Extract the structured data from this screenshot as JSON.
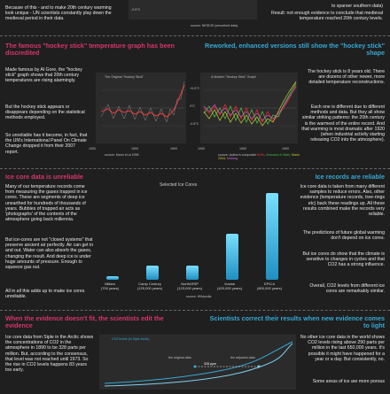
{
  "top": {
    "left_text": "Because of this - and to make 20th century warming look unique - UN scientists constantly play down the medieval period in their data.",
    "tick": "-0.5°C",
    "source": "source: NESDIS (smoothed data)",
    "right_line1": "to sparser southern data)",
    "right_text": "Result: not enough evidence to conclude that medieval temperature reached 20th century levels."
  },
  "hockey": {
    "left_heading": "The famous \"hockey stick\" temperature graph has been discredited",
    "right_heading": "Reworked, enhanced versions still show the \"hockey stick\" shape",
    "left_paragraphs": [
      "Made famous by Al Gore, the \"hockey stick\" graph shows that 20th century temperatures are rising alarmingly.",
      "But the hockey stick appears or disappears depending on the statistical methods employed.",
      "So unreliable has it become, in fact, that the UN's International Panel On Climate Change dropped it from their 2007 report."
    ],
    "chart1_title": "The Original \"Hockey Stick\"",
    "chart2_title": "A Modern \"Hockey Stick\" Graph",
    "tick_pos": "+0.5°C",
    "tick_zero": "0°C",
    "tick_neg": "-0.5°C",
    "x1000": "1000",
    "x1500": "1500",
    "x1900": "1900",
    "x1000b": "1000",
    "x1500b": "1500",
    "x1900b": "1900",
    "source1": "source: Mann et al 1998",
    "source2a": "source: Author's composite ",
    "source2b": "Briffa",
    "source2c": "Ammann & Wahl",
    "source2d": "Mann 2003",
    "source2e": "Moberg",
    "right_paragraphs": [
      "The hockey stick is 8 years old. There are dozens of other newer, more detailed temperature reconstructions.",
      "Each one is different due to different methods and data. But they all show similar striking patterns: the 20th century is the warmest of the entire record. And that warming is most dramatic after 1920 (when industrial activity starting releasing CO2 into the atmosphere)."
    ]
  },
  "ice": {
    "left_heading": "Ice core data is unreliable",
    "right_heading": "Ice records are reliable",
    "left_paragraphs": [
      "Many of our temperature records come from measuring the gases trapped in ice cores. These are segments of deep ice unearthed for hundreds of thousands of years. Bubbles of trapped air acts as 'photographs' of the contents of the atmosphere going back millennia.",
      "But ice-cores are not \"closed systems\" that preserve ancient air perfectly. Air can get in and out. Water can also absorb the gases, changing the result. And deep ice is under huge amounts of pressure. Enough to squeeze gas out.",
      "All in all this adds up to make ice cores unreliable."
    ],
    "chart_title": "Selected Ice Cores",
    "bars": [
      {
        "name": "Millam",
        "years": "(700 years)",
        "value": 700
      },
      {
        "name": "Camp Century",
        "years": "(125,000 years)",
        "value": 125000
      },
      {
        "name": "NorthGRIP",
        "years": "(123,000 years)",
        "value": 123000
      },
      {
        "name": "Vostok",
        "years": "(420,000 years)",
        "value": 420000
      },
      {
        "name": "EPICA",
        "years": "(800,000 years)",
        "value": 800000
      }
    ],
    "source": "source: Wikipedia",
    "right_paragraphs": [
      "Ice core data is taken from many different samples to reduce errors. Also, other evidence (temperature records, tree-rings etc) back these readings up. All these results combined make the records very reliable.",
      "The predictions of future global warming don't depend on ice cores.",
      "But ice cores do show that the climate is sensitive to changes in cycles and that CO2 has a strong influence.",
      "Overall, CO2 levels from different ice cores are remarkably similar."
    ]
  },
  "evidence": {
    "left_heading": "When the evidence doesn't fit, the scientists edit the evidence",
    "right_heading": "Scientists correct their results when new evidence comes to light",
    "left_text": "Ice core data from Siple in the Arctic shows the concentrations of CO2 in the atmosphere in 1890 to be 328 parts per million. But, according to the consensus, that level was not reached until 1973. So the rise in CO2 levels happens 83 years too early.",
    "chart_title": "CO2 levels (in Siple Arctic)",
    "label_original": "the original data",
    "label_adjusted": "the adjusted data",
    "value": "328 ppm",
    "right_text1": "No other ice core data in the world shows CO2 levels rising above 290 parts per million in the last 650,000 years. It's possible it might have happened for a year or a day. But consistently, no.",
    "right_text2": "Some areas of ice are more porous"
  }
}
